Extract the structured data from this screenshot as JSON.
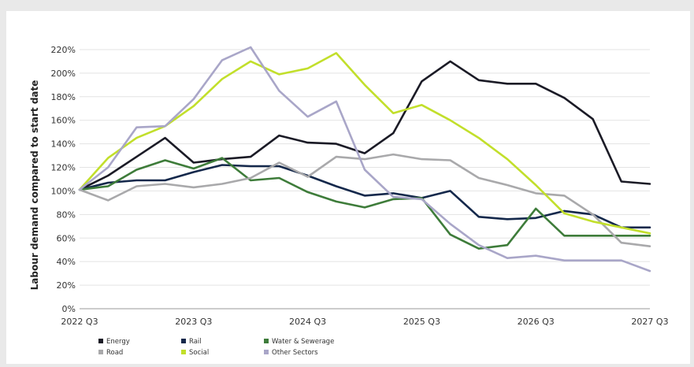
{
  "chart_data": {
    "type": "line",
    "title": "",
    "xlabel": "",
    "ylabel": "Labour demand compared to start date",
    "x_tick_labels": [
      "2022 Q3",
      "2023 Q3",
      "2024 Q3",
      "2025 Q3",
      "2026 Q3",
      "2027 Q3"
    ],
    "y_tick_labels": [
      "0%",
      "20%",
      "40%",
      "60%",
      "80%",
      "100%",
      "120%",
      "140%",
      "160%",
      "180%",
      "200%",
      "220%"
    ],
    "ylim": [
      0,
      230
    ],
    "y_unit": "%",
    "grid": "horizontal",
    "legend_position": "bottom",
    "x_points": 21,
    "series": [
      {
        "name": "Energy",
        "color": "#1b1b26",
        "values": [
          101,
          113,
          129,
          145,
          124,
          127,
          129,
          147,
          141,
          140,
          132,
          149,
          193,
          210,
          194,
          191,
          191,
          179,
          161,
          108,
          106
        ]
      },
      {
        "name": "Rail",
        "color": "#14284b",
        "values": [
          101,
          107,
          109,
          109,
          116,
          122,
          121,
          121,
          113,
          104,
          96,
          98,
          94,
          100,
          78,
          76,
          77,
          83,
          80,
          69,
          69
        ]
      },
      {
        "name": "Water & Sewerage",
        "color": "#3e7c3a",
        "values": [
          101,
          104,
          118,
          126,
          119,
          128,
          109,
          111,
          99,
          91,
          86,
          93,
          94,
          63,
          51,
          54,
          85,
          62,
          62,
          62,
          62
        ]
      },
      {
        "name": "Road",
        "color": "#a9a9ab",
        "values": [
          101,
          92,
          104,
          106,
          103,
          106,
          111,
          124,
          112,
          129,
          127,
          131,
          127,
          126,
          111,
          105,
          98,
          96,
          80,
          56,
          53
        ]
      },
      {
        "name": "Social",
        "color": "#c2df2b",
        "values": [
          101,
          128,
          145,
          155,
          172,
          195,
          210,
          199,
          204,
          217,
          190,
          166,
          173,
          160,
          145,
          127,
          105,
          81,
          74,
          69,
          64
        ]
      },
      {
        "name": "Other Sectors",
        "color": "#a9a6c8",
        "values": [
          101,
          120,
          154,
          155,
          178,
          211,
          222,
          185,
          163,
          176,
          118,
          95,
          93,
          72,
          54,
          43,
          45,
          41,
          41,
          41,
          32
        ]
      }
    ]
  }
}
